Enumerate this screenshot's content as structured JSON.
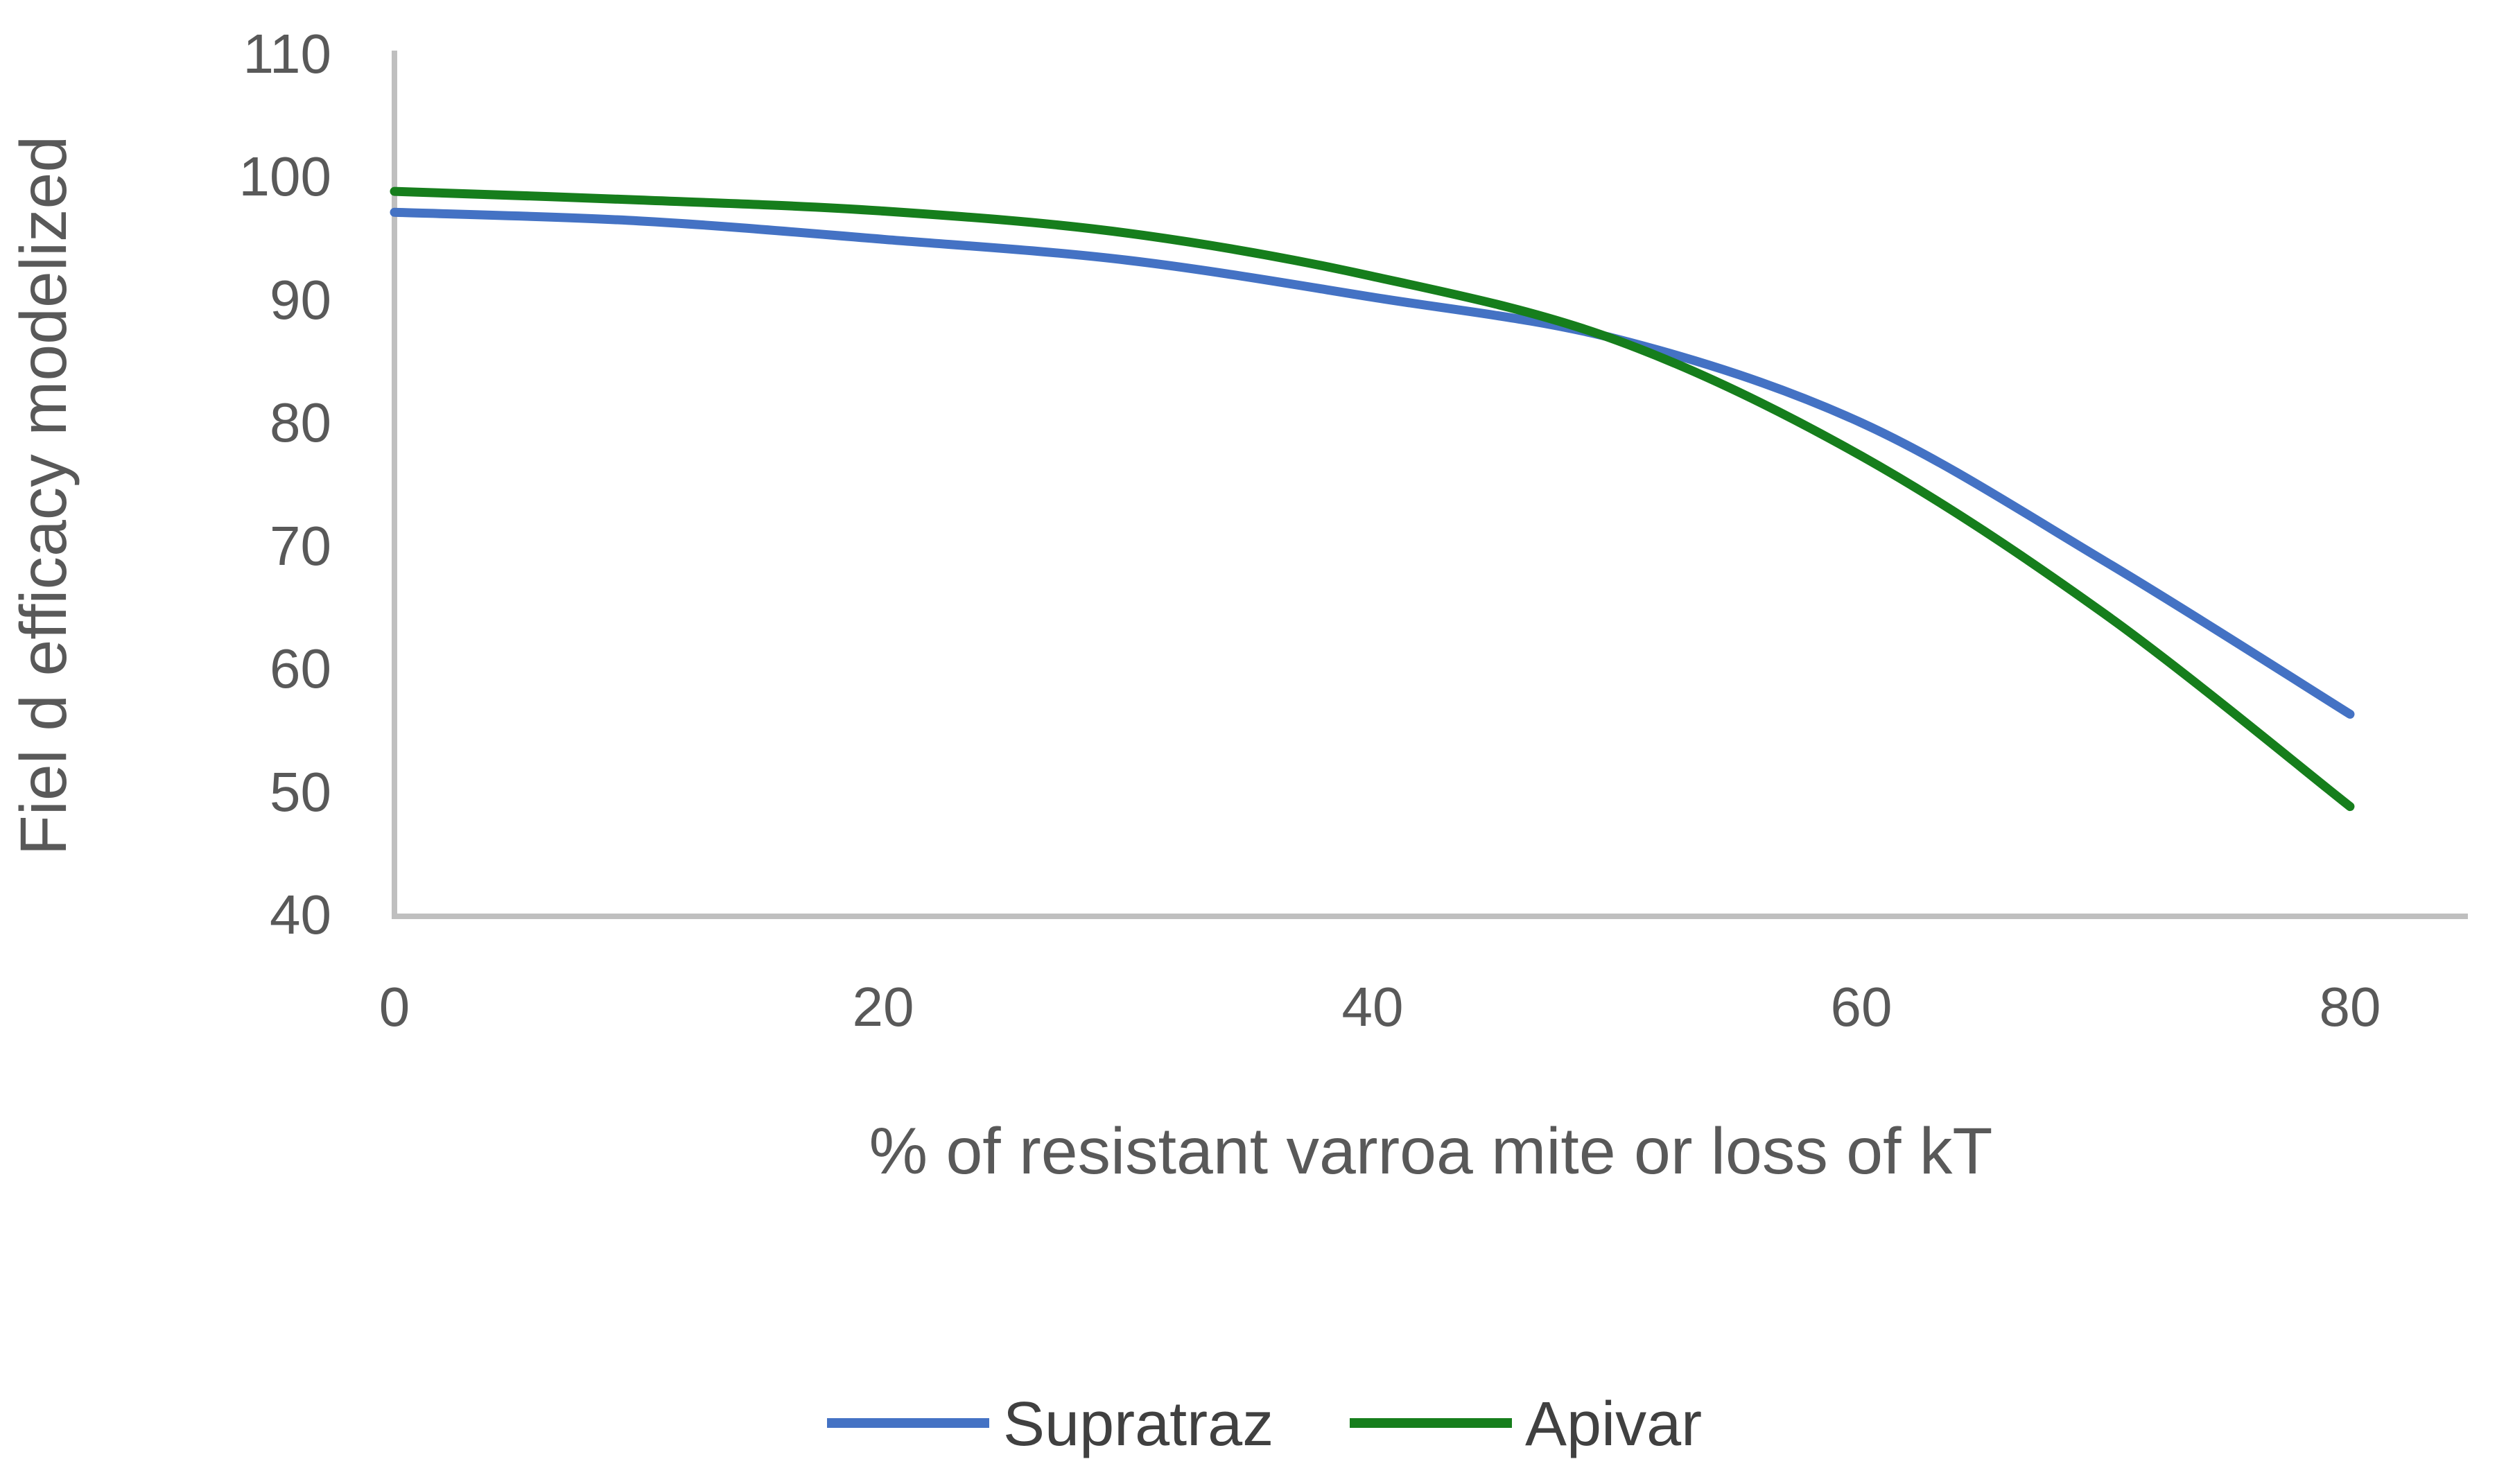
{
  "chart_data": {
    "type": "line",
    "title": "",
    "xlabel": "% of resistant varroa mite or loss of kT",
    "ylabel": "Fiel d efficacy modelized",
    "x": [
      0,
      10,
      20,
      30,
      40,
      50,
      60,
      70,
      80
    ],
    "x_ticks": [
      0,
      20,
      40,
      60,
      80
    ],
    "y_ticks": [
      40,
      50,
      60,
      70,
      80,
      90,
      100,
      110
    ],
    "xlim": [
      0,
      85
    ],
    "ylim": [
      40,
      110
    ],
    "grid": false,
    "line_style": "smooth",
    "legend_position": "bottom-center",
    "series": [
      {
        "name": "Supratraz",
        "color": "#4472C4",
        "values": [
          97.0,
          96.3,
          94.8,
          93.1,
          90.1,
          86.7,
          79.9,
          68.6,
          56.2
        ]
      },
      {
        "name": "Apivar",
        "color": "#167E1C",
        "values": [
          98.7,
          98.0,
          97.1,
          95.3,
          91.8,
          86.6,
          77.2,
          64.3,
          48.7
        ]
      }
    ],
    "colors": {
      "axis_line": "#BFBFBF",
      "tick_label": "#595959",
      "axis_title": "#595959",
      "legend_text": "#404040",
      "background": "#FFFFFF"
    }
  }
}
